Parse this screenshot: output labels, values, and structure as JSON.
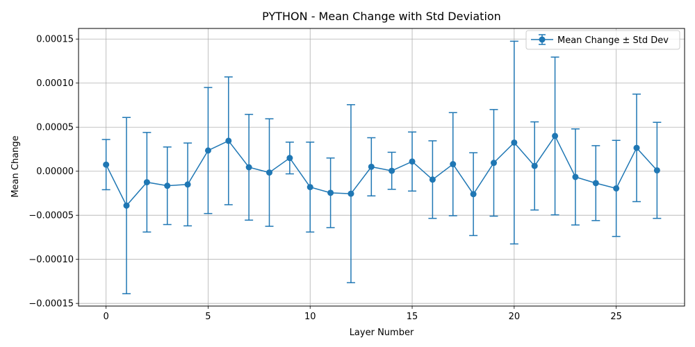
{
  "chart_data": {
    "type": "line",
    "title": "PYTHON - Mean Change with Std Deviation",
    "xlabel": "Layer Number",
    "ylabel": "Mean Change",
    "xlim": [
      -1.35,
      28.35
    ],
    "ylim": [
      -0.000153,
      0.000162
    ],
    "xticks": [
      0,
      5,
      10,
      15,
      20,
      25
    ],
    "xtick_labels": [
      "0",
      "5",
      "10",
      "15",
      "20",
      "25"
    ],
    "yticks": [
      -0.00015,
      -0.0001,
      -5e-05,
      0,
      5e-05,
      0.0001,
      0.00015
    ],
    "ytick_labels": [
      "−0.00015",
      "−0.00010",
      "−0.00005",
      "0.00000",
      "0.00005",
      "0.00010",
      "0.00015"
    ],
    "grid": true,
    "legend_position": "top-right",
    "color": "#1f77b4",
    "series": [
      {
        "name": "Mean Change ± Std Dev",
        "x": [
          0,
          1,
          2,
          3,
          4,
          5,
          6,
          7,
          8,
          9,
          10,
          11,
          12,
          13,
          14,
          15,
          16,
          17,
          18,
          19,
          20,
          21,
          22,
          23,
          24,
          25,
          26,
          27
        ],
        "y": [
          7.5e-06,
          -3.9e-05,
          -1.25e-05,
          -1.65e-05,
          -1.5e-05,
          2.35e-05,
          3.45e-05,
          4.5e-06,
          -1.5e-06,
          1.5e-05,
          -1.8e-05,
          -2.45e-05,
          -2.55e-05,
          5e-06,
          5e-07,
          1.1e-05,
          -9.5e-06,
          8e-06,
          -2.6e-05,
          9.5e-06,
          3.25e-05,
          6e-06,
          4e-05,
          -6.5e-06,
          -1.35e-05,
          -1.95e-05,
          2.65e-05,
          1e-06
        ],
        "std": [
          2.85e-05,
          0.0001,
          5.65e-05,
          4.4e-05,
          4.7e-05,
          7.15e-05,
          7.25e-05,
          6e-05,
          6.1e-05,
          1.8e-05,
          5.1e-05,
          3.95e-05,
          0.000101,
          3.3e-05,
          2.1e-05,
          3.35e-05,
          4.4e-05,
          5.85e-05,
          4.7e-05,
          6.05e-05,
          0.000115,
          5e-05,
          8.95e-05,
          5.45e-05,
          4.25e-05,
          5.45e-05,
          6.1e-05,
          5.45e-05
        ]
      }
    ]
  }
}
